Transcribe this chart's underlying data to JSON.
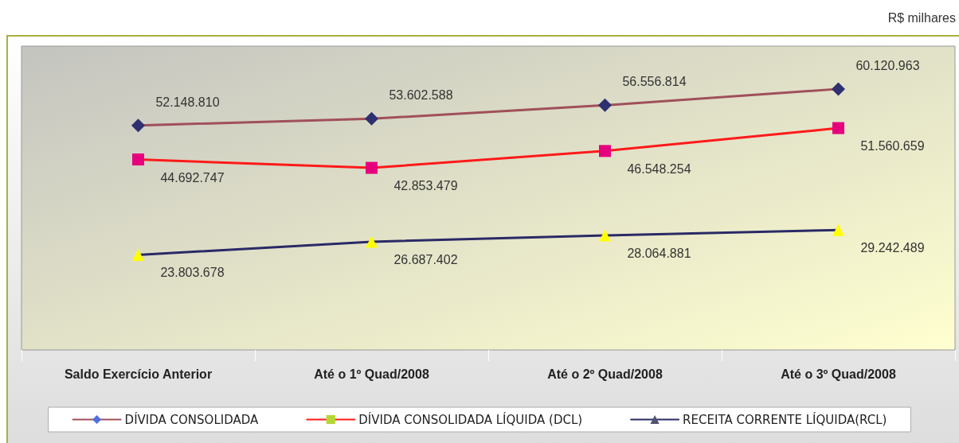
{
  "chart_data": {
    "type": "line",
    "categories": [
      "Saldo Exercício Anterior",
      "Até o 1º Quad/2008",
      "Até o 2º Quad/2008",
      "Até o 3º Quad/2008"
    ],
    "series": [
      {
        "name": "DÍVIDA CONSOLIDADA",
        "color": "#a0505a",
        "colors": [
          "#2e3070",
          "#2e3070",
          "#2e3070",
          "#2e3070"
        ],
        "marker": "diamond",
        "values": [
          52148810,
          53602588,
          56556814,
          60120963
        ],
        "value_labels": [
          "52.148.810",
          "53.602.588",
          "56.556.814",
          "60.120.963"
        ]
      },
      {
        "name": "DÍVIDA CONSOLIDADA LÍQUIDA (DCL)",
        "color": "#ff1a1a",
        "colors": [
          "#e6007e",
          "#e6007e",
          "#e6007e",
          "#e6007e"
        ],
        "marker": "square",
        "values": [
          44692747,
          42853479,
          46548254,
          51560659
        ],
        "value_labels": [
          "44.692.747",
          "42.853.479",
          "46.548.254",
          "51.560.659"
        ]
      },
      {
        "name": "RECEITA CORRENTE LÍQUIDA(RCL)",
        "color": "#2a2a66",
        "colors": [
          "#ffff00",
          "#ffff00",
          "#ffff00",
          "#ffff00"
        ],
        "marker": "triangle",
        "values": [
          23803678,
          26687402,
          28064881,
          29242489
        ],
        "value_labels": [
          "23.803.678",
          "26.687.402",
          "28.064.881",
          "29.242.489"
        ]
      }
    ],
    "ylim": [
      3000000,
      69500000
    ],
    "tick_labels": "x",
    "grid": false,
    "legend": "bottom",
    "annotations": [
      "R$ milhares"
    ]
  }
}
